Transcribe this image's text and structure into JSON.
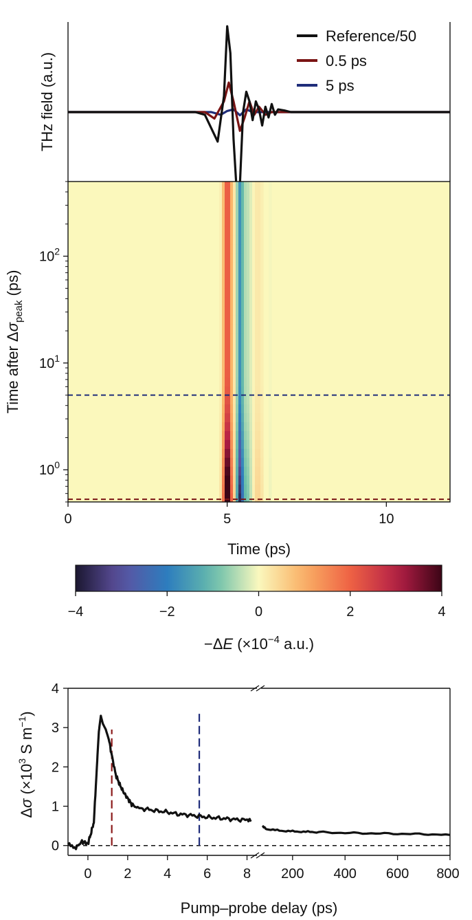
{
  "chart_data": [
    {
      "type": "line",
      "id": "thz-traces",
      "ylabel": "THz field (a.u.)",
      "xlim": [
        0,
        12
      ],
      "x_shared_with": "heatmap",
      "legend": {
        "placement": "top-right"
      },
      "series": [
        {
          "name": "Reference/50",
          "color": "#111111",
          "x": [
            0,
            4.0,
            4.3,
            4.5,
            4.7,
            4.9,
            5.0,
            5.1,
            5.2,
            5.3,
            5.4,
            5.5,
            5.6,
            5.7,
            5.8,
            5.9,
            6.0,
            6.1,
            6.2,
            6.3,
            6.4,
            6.5,
            6.6,
            6.8,
            7.0,
            12
          ],
          "y": [
            0,
            0,
            -0.05,
            -0.3,
            -0.55,
            0.3,
            1.6,
            1.1,
            -0.5,
            -1.5,
            -1.35,
            0.0,
            0.38,
            0.2,
            -0.15,
            0.2,
            0.05,
            -0.25,
            0.1,
            -0.1,
            0.15,
            -0.05,
            0.05,
            0.03,
            0,
            0
          ]
        },
        {
          "name": "0.5 ps",
          "color": "#7a1414",
          "x": [
            0,
            4.3,
            4.6,
            4.9,
            5.05,
            5.2,
            5.4,
            5.55,
            5.7,
            5.85,
            6.0,
            6.2,
            6.4,
            12
          ],
          "y": [
            0,
            0,
            -0.12,
            0.2,
            0.55,
            0.2,
            -0.35,
            -0.1,
            0.2,
            -0.05,
            0.1,
            -0.05,
            0.0,
            0
          ]
        },
        {
          "name": "5 ps",
          "color": "#1f2d7a",
          "x": [
            0,
            4.5,
            4.8,
            5.0,
            5.2,
            5.4,
            5.6,
            5.8,
            12
          ],
          "y": [
            0,
            0,
            -0.05,
            0.02,
            0.05,
            -0.06,
            0.05,
            0.0,
            0
          ]
        }
      ]
    },
    {
      "type": "heatmap",
      "id": "heatmap",
      "xlabel": "Time (ps)",
      "ylabel_parts": {
        "pre": "Time after Δ",
        "sigma": "σ",
        "sub": "peak",
        "post": " (ps)"
      },
      "xlim": [
        0,
        12
      ],
      "xticks": [
        0,
        5,
        10
      ],
      "yscale": "log",
      "ylim": [
        0.5,
        500
      ],
      "yticks": [
        {
          "value": 1,
          "base": "10",
          "exp": "0"
        },
        {
          "value": 10,
          "base": "10",
          "exp": "1"
        },
        {
          "value": 100,
          "base": "10",
          "exp": "2"
        }
      ],
      "hlines": [
        {
          "y": 5,
          "color": "#1f2d7a",
          "style": "dashed"
        },
        {
          "y": 0.53,
          "color": "#7a1414",
          "style": "dashed"
        }
      ],
      "colormap": "Spectral_r",
      "colorbar": {
        "range": [
          -4,
          4
        ],
        "ticks": [
          -4,
          -2,
          0,
          2,
          4
        ],
        "tick_labels": [
          "−4",
          "−2",
          "0",
          "2",
          "4"
        ],
        "label_parts": {
          "pre": "−Δ",
          "var": "E",
          "mid": " (×10",
          "exp": "−4",
          "post": " a.u.)"
        }
      }
    },
    {
      "type": "line",
      "id": "conductivity",
      "xlabel": "Pump–probe delay (ps)",
      "ylabel_parts": {
        "pre": "Δ",
        "sigma": "σ",
        "mid": " (×10",
        "exp": "3",
        "mid2": " S m",
        "exp2": "−1",
        "post": ")"
      },
      "ylim": [
        -0.25,
        4
      ],
      "yticks": [
        0,
        1,
        2,
        3,
        4
      ],
      "broken_xaxis": true,
      "xlim_left": [
        -1,
        8.5
      ],
      "xlim_right": [
        80,
        800
      ],
      "xticks_left": [
        0,
        2,
        4,
        6,
        8
      ],
      "xtick_labels_left": [
        "0",
        "2",
        "4",
        "6",
        "8"
      ],
      "xticks_right": [
        200,
        400,
        600,
        800
      ],
      "xtick_labels_right": [
        "200",
        "400",
        "600",
        "800"
      ],
      "baseline": {
        "y": 0,
        "style": "dashed",
        "color": "#111111"
      },
      "vlines": [
        {
          "x": 1.2,
          "color": "#8b1a1a",
          "style": "dashed",
          "ymax": 2.95
        },
        {
          "x": 5.6,
          "color": "#1f2d7a",
          "style": "dashed",
          "ymax": 3.35
        }
      ],
      "series": [
        {
          "name": "",
          "color": "#111111",
          "segment": "left",
          "x": [
            -1,
            -0.6,
            -0.3,
            0,
            0.15,
            0.3,
            0.45,
            0.55,
            0.65,
            0.75,
            0.9,
            1.05,
            1.2,
            1.4,
            1.6,
            1.8,
            2.0,
            2.2,
            2.5,
            3.0,
            3.5,
            4.0,
            4.5,
            5.0,
            5.5,
            6.0,
            6.5,
            7.0,
            7.5,
            8.0,
            8.2
          ],
          "y": [
            0.05,
            -0.05,
            0.1,
            0.05,
            0.3,
            0.6,
            2.0,
            2.9,
            3.3,
            3.1,
            2.95,
            2.7,
            2.3,
            1.8,
            1.55,
            1.35,
            1.2,
            1.05,
            0.95,
            0.92,
            0.88,
            0.85,
            0.8,
            0.78,
            0.75,
            0.72,
            0.7,
            0.68,
            0.66,
            0.65,
            0.65
          ]
        },
        {
          "name": "",
          "color": "#111111",
          "segment": "right",
          "x": [
            85,
            100,
            150,
            200,
            250,
            300,
            400,
            500,
            600,
            700,
            800
          ],
          "y": [
            0.5,
            0.42,
            0.38,
            0.36,
            0.35,
            0.34,
            0.32,
            0.31,
            0.3,
            0.29,
            0.27
          ]
        }
      ]
    }
  ]
}
